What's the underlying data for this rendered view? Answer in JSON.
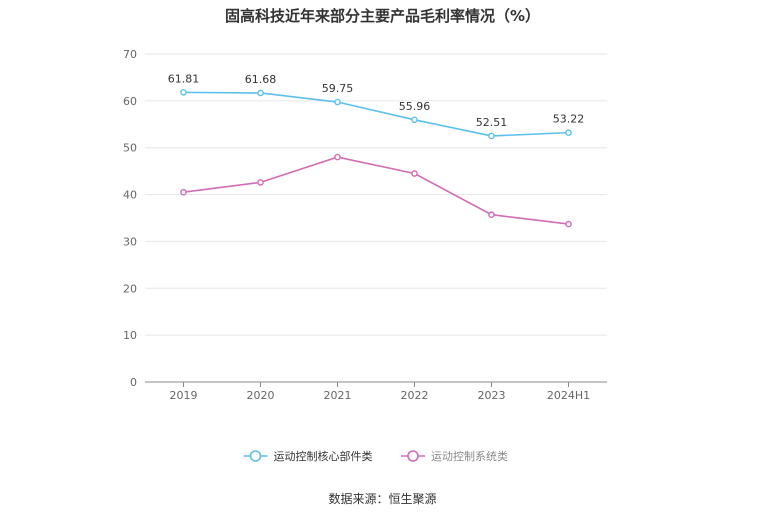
{
  "chart_data": {
    "type": "line",
    "title": "固高科技近年来部分主要产品毛利率情况（%）",
    "categories": [
      "2019",
      "2020",
      "2021",
      "2022",
      "2023",
      "2024H1"
    ],
    "yticks": [
      0,
      10,
      20,
      30,
      40,
      50,
      60,
      70
    ],
    "ylim": [
      0,
      70
    ],
    "xlabel": "",
    "ylabel": "",
    "legend_position": "bottom",
    "series": [
      {
        "name": "运动控制核心部件类",
        "values": [
          61.81,
          61.68,
          59.75,
          55.96,
          52.51,
          53.22
        ],
        "labels": [
          "61.81",
          "61.68",
          "59.75",
          "55.96",
          "52.51",
          "53.22"
        ],
        "color": "#5bc0eb",
        "show_labels": true
      },
      {
        "name": "运动控制系统类",
        "values": [
          40.5,
          42.6,
          48.0,
          44.5,
          35.7,
          33.7
        ],
        "color": "#d36bb5",
        "show_labels": false
      }
    ]
  },
  "source_text": "数据来源：恒生聚源"
}
